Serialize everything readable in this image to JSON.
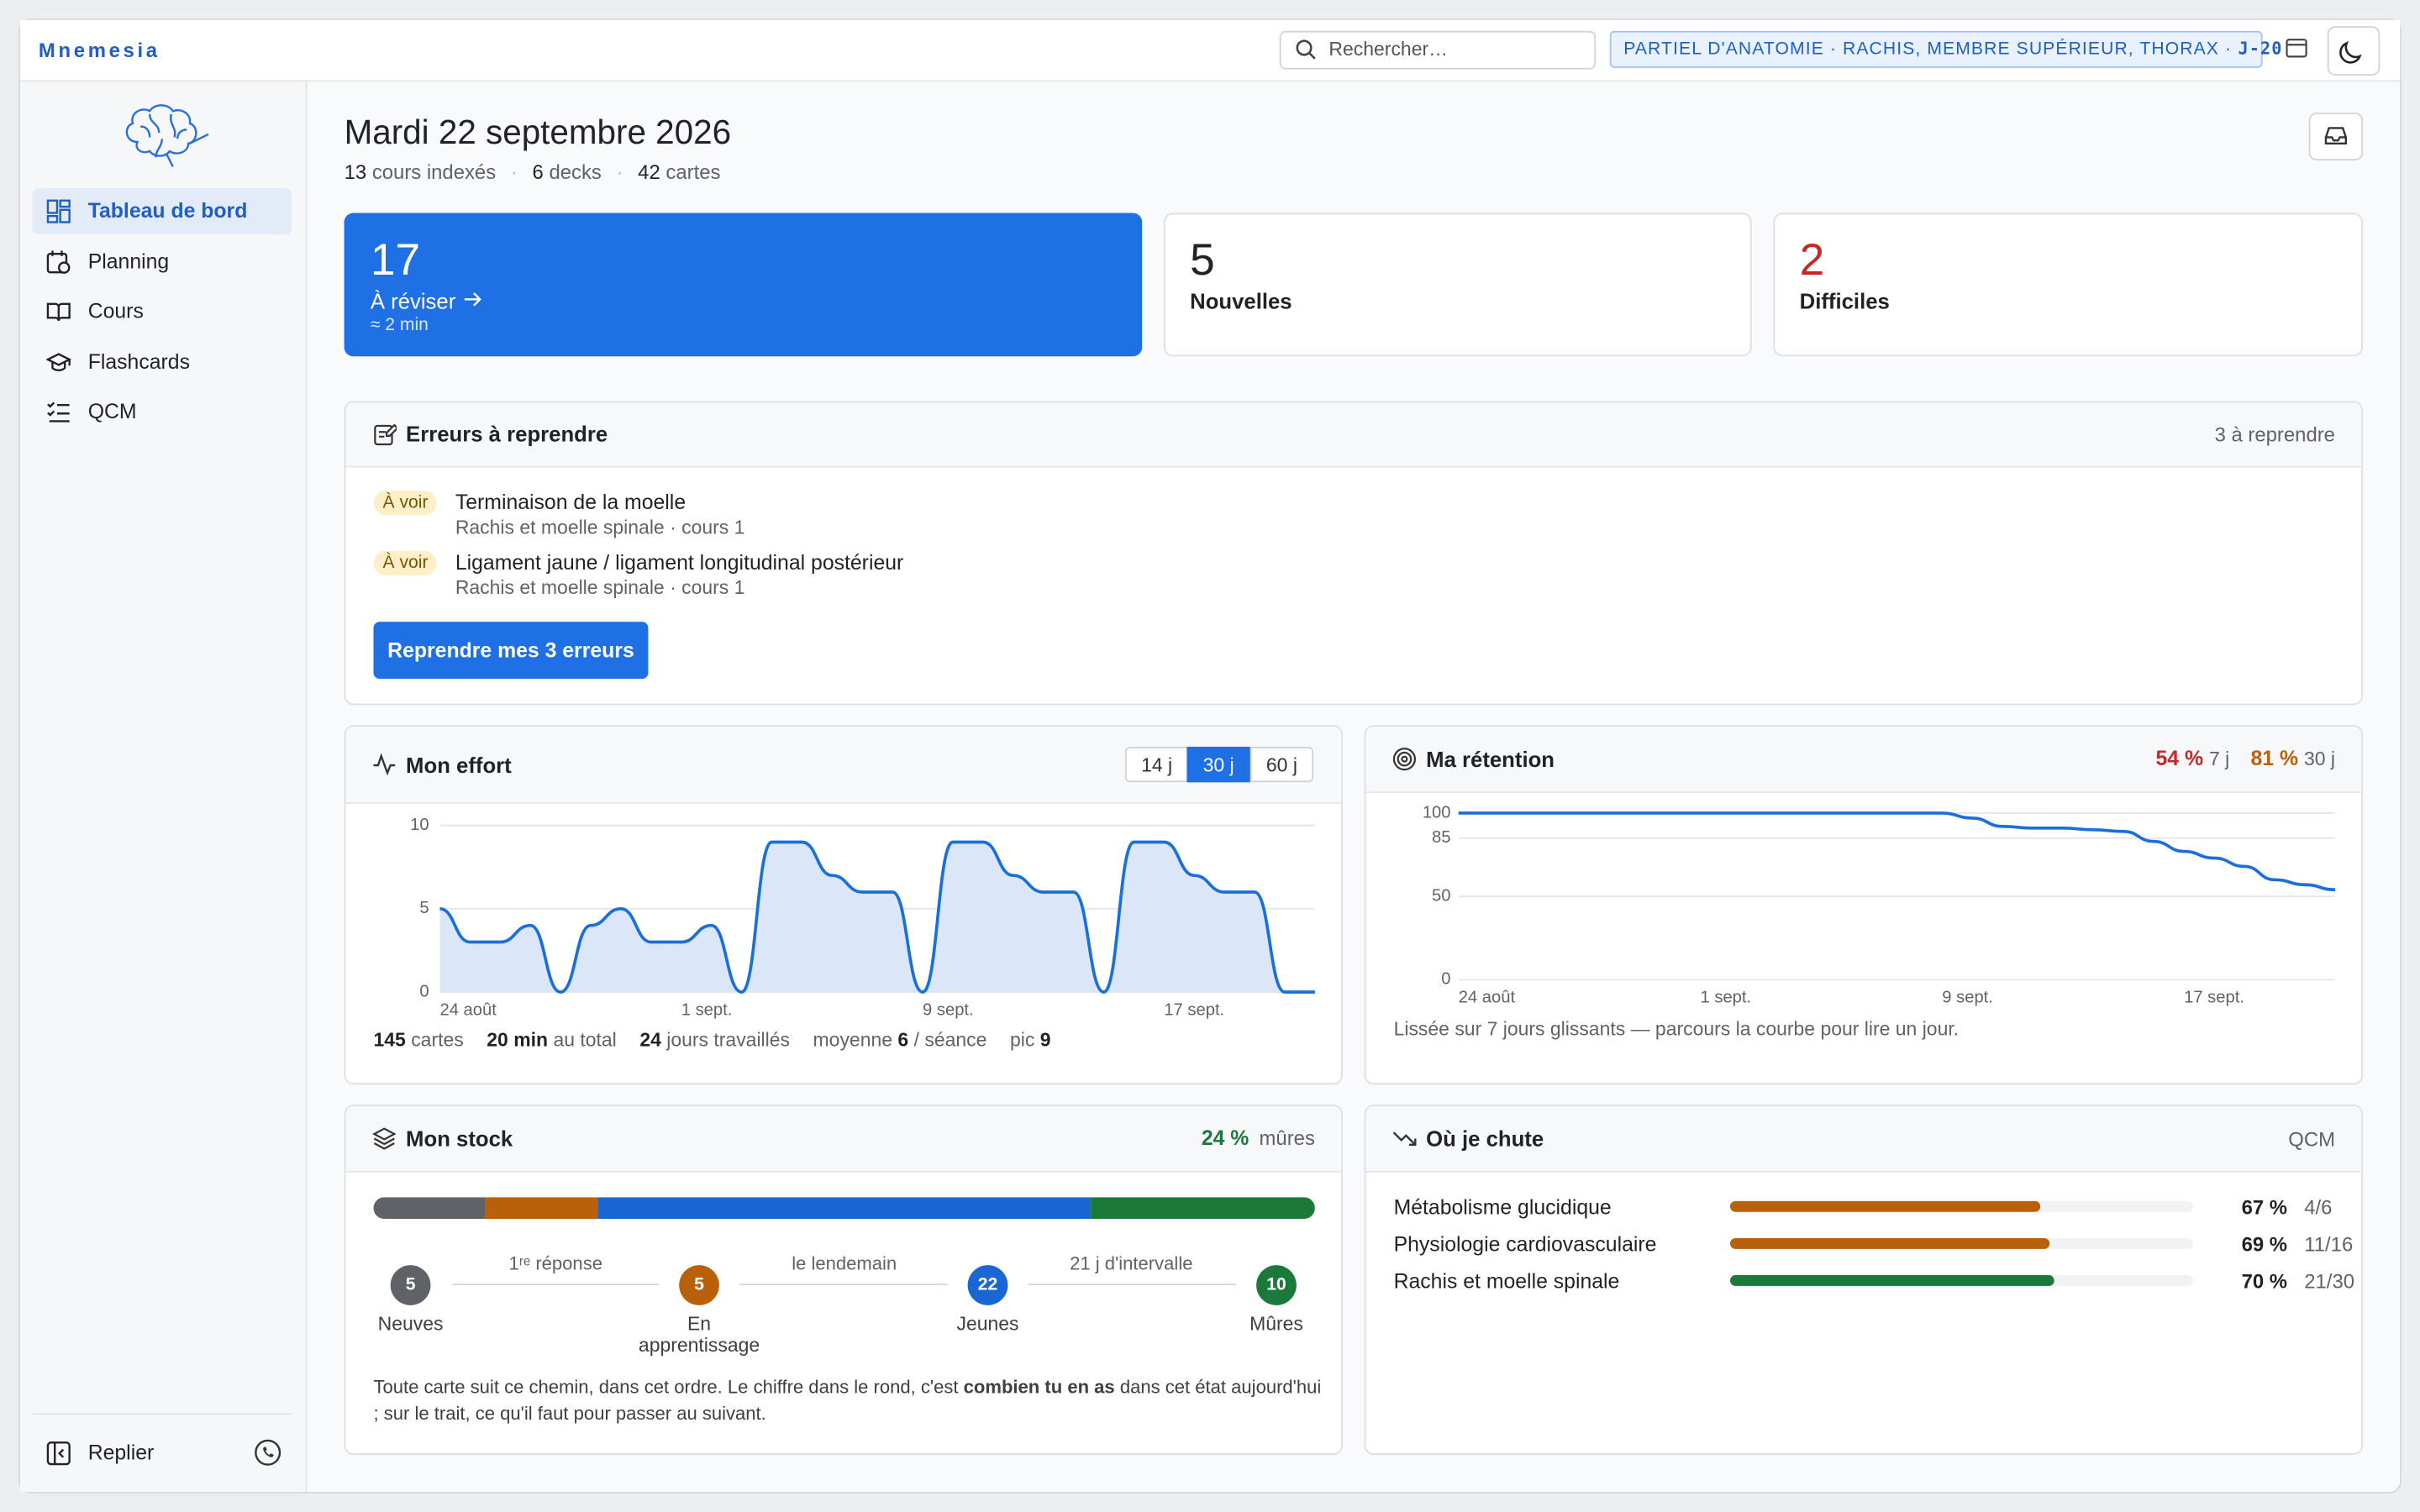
{
  "topbar": {
    "brand": "Mnemesia",
    "search_placeholder": "Rechercher…",
    "exam": "PARTIEL D'ANATOMIE · RACHIS, MEMBRE SUPÉRIEUR, THORAX ·",
    "countdown": "J-20"
  },
  "sidebar": {
    "nav": [
      "Tableau de bord",
      "Planning",
      "Cours",
      "Flashcards",
      "QCM"
    ],
    "active": "Tableau de bord",
    "collapse": "Replier"
  },
  "header": {
    "date": "Mardi 22 septembre 2026",
    "stats": [
      {
        "value": 13,
        "label": "cours indexés"
      },
      {
        "value": 6,
        "label": "decks"
      },
      {
        "value": 42,
        "label": "cartes"
      }
    ]
  },
  "cards": [
    {
      "value": 17,
      "label": "À réviser",
      "note": "≈ 2 min"
    },
    {
      "value": 5,
      "label": "Nouvelles"
    },
    {
      "value": 2,
      "label": "Difficiles"
    }
  ],
  "errors": {
    "title": "Erreurs à reprendre",
    "count": "3 à reprendre",
    "items": [
      {
        "tag": "À voir",
        "title": "Terminaison de la moelle",
        "source": "Rachis et moelle spinale · cours 1"
      },
      {
        "tag": "À voir",
        "title": "Ligament jaune / ligament longitudinal postérieur",
        "source": "Rachis et moelle spinale · cours 1"
      }
    ],
    "button": "Reprendre mes 3 erreurs"
  },
  "effort": {
    "title": "Mon effort",
    "ranges": [
      "14 j",
      "30 j",
      "60 j"
    ],
    "selected_range": "30 j",
    "chart": {
      "type": "area",
      "color": "#1a6fd8",
      "categories": [
        "24 août",
        null,
        null,
        null,
        null,
        null,
        null,
        null,
        "1 sept.",
        null,
        null,
        null,
        null,
        null,
        null,
        null,
        "9 sept.",
        null,
        null,
        null,
        null,
        null,
        null,
        null,
        "17 sept.",
        null,
        null,
        null,
        null,
        null
      ],
      "values": [
        5,
        3,
        3,
        4,
        0,
        4,
        5,
        3,
        3,
        4,
        0,
        9,
        9,
        7,
        6,
        6,
        0,
        9,
        9,
        7,
        6,
        6,
        0,
        9,
        9,
        7,
        6,
        6,
        0,
        0
      ],
      "ylim": [
        0,
        10
      ],
      "yticks": [
        0,
        5,
        10
      ],
      "grid": true
    },
    "summary": [
      {
        "value": 145,
        "label": "cartes"
      },
      {
        "value": "20 min",
        "label": "au total"
      },
      {
        "value": 24,
        "label": "jours travaillés"
      },
      {
        "prefix": "moyenne",
        "value": 6,
        "label": "/ séance"
      },
      {
        "prefix": "pic",
        "value": 9
      }
    ]
  },
  "retention": {
    "title": "Ma rétention",
    "rates": [
      {
        "value": "54 %",
        "period": "7 j",
        "color": "#c62828"
      },
      {
        "value": "81 %",
        "period": "30 j",
        "color": "#b8610a"
      }
    ],
    "chart": {
      "type": "line",
      "color": "#1a6fd8",
      "categories": [
        "24 août",
        null,
        null,
        null,
        null,
        null,
        null,
        null,
        "1 sept.",
        null,
        null,
        null,
        null,
        null,
        null,
        null,
        "9 sept.",
        null,
        null,
        null,
        null,
        null,
        null,
        null,
        "17 sept.",
        null,
        null,
        null,
        null,
        null
      ],
      "values": [
        100,
        100,
        100,
        100,
        100,
        100,
        100,
        100,
        100,
        100,
        100,
        100,
        100,
        100,
        100,
        100,
        100,
        97,
        92,
        91,
        91,
        90,
        89,
        83,
        77,
        73,
        68,
        60,
        57,
        54
      ],
      "ylim": [
        0,
        100
      ],
      "yticks": [
        0,
        50,
        85,
        100
      ],
      "grid": true
    },
    "caption": "Lissée sur 7 jours glissants — parcours la courbe pour lire un jour."
  },
  "stock": {
    "title": "Mon stock",
    "mature_rate": "24 %",
    "mature_label": "mûres",
    "stages": [
      {
        "count": 5,
        "label": "Neuves",
        "color": "#5f6368"
      },
      {
        "count": 5,
        "label": "En apprentissage",
        "color": "#b8610a"
      },
      {
        "count": 22,
        "label": "Jeunes",
        "color": "#1a66d2"
      },
      {
        "count": 10,
        "label": "Mûres",
        "color": "#1b7a3a"
      }
    ],
    "transitions": [
      "1ʳᵉ réponse",
      "le lendemain",
      "21 j d'intervalle"
    ],
    "note": [
      "Toute carte suit ce chemin, dans cet ordre. Le chiffre dans le rond, c'est ",
      "combien tu en as",
      " dans cet état aujourd'hui ; sur le trait, ce qu'il faut pour passer au suivant."
    ]
  },
  "weak": {
    "title": "Où je chute",
    "scope": "QCM",
    "rows": [
      {
        "label": "Métabolisme glucidique",
        "percent": 67,
        "percent_label": "67 %",
        "score": "4/6",
        "color": "#b8610a"
      },
      {
        "label": "Physiologie cardiovasculaire",
        "percent": 69,
        "percent_label": "69 %",
        "score": "11/16",
        "color": "#b8610a"
      },
      {
        "label": "Rachis et moelle spinale",
        "percent": 70,
        "percent_label": "70 %",
        "score": "21/30",
        "color": "#1b7a3a"
      }
    ]
  }
}
